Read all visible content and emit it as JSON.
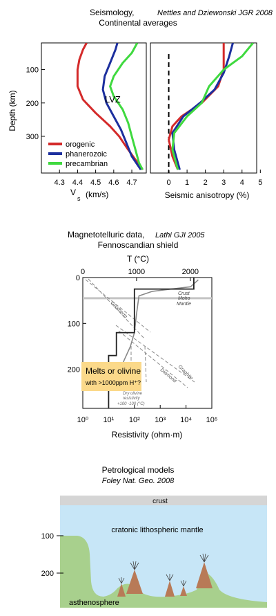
{
  "seismology": {
    "title": "Seismology,",
    "citation": "Nettles and Dziewonski JGR 2008",
    "subtitle": "Continental averages",
    "ylabel": "Depth (km)",
    "lvz_label": "LVZ",
    "legend": [
      "orogenic",
      "phanerozoic",
      "precambrian"
    ]
  },
  "magnetotelluric": {
    "title": "Magnetotelluric data,",
    "citation": "Lathi GJI 2005",
    "subtitle": "Fennoscandian shield",
    "top_axis_label": "T (°C)",
    "xlabel": "Resistivity (ohm·m)",
    "crust": "Crust",
    "moho": "Moho",
    "mantle": "Mantle",
    "geotherm": "Geotherm",
    "graphite": "Graphite",
    "diamond": "Diamond",
    "dry_olivine": [
      "Dry olivine",
      "resistivity",
      "+100 -100 (°C)"
    ],
    "callout_line1": "Melts or olivine",
    "callout_line2": "with >1000ppm H⁺?"
  },
  "petrology": {
    "title": "Petrological models",
    "citation": "Foley Nat. Geo. 2008",
    "crust": "crust",
    "mantle": "cratonic lithospheric mantle",
    "asthenosphere": "asthenosphere",
    "depth_ticks": [
      "100",
      "200"
    ]
  },
  "chart_data": [
    {
      "type": "line",
      "name": "seismic velocity",
      "xlabel": "V_s (km/s)",
      "ylabel": "Depth (km)",
      "xlim": [
        4.2,
        4.78
      ],
      "ylim": [
        410,
        20
      ],
      "xticks": [
        "4.3",
        "4.4",
        "4.5",
        "4.6",
        "4.7"
      ],
      "yticks": [
        "100",
        "200",
        "300"
      ],
      "series": [
        {
          "name": "orogenic",
          "color": "#d42a2a",
          "points": [
            [
              4.45,
              20
            ],
            [
              4.43,
              40
            ],
            [
              4.41,
              70
            ],
            [
              4.4,
              100
            ],
            [
              4.4,
              150
            ],
            [
              4.43,
              190
            ],
            [
              4.5,
              230
            ],
            [
              4.58,
              270
            ],
            [
              4.63,
              300
            ],
            [
              4.68,
              340
            ],
            [
              4.72,
              370
            ],
            [
              4.76,
              400
            ]
          ]
        },
        {
          "name": "phanerozoic",
          "color": "#1c2f9e",
          "points": [
            [
              4.62,
              20
            ],
            [
              4.61,
              40
            ],
            [
              4.58,
              80
            ],
            [
              4.55,
              120
            ],
            [
              4.54,
              160
            ],
            [
              4.56,
              200
            ],
            [
              4.6,
              240
            ],
            [
              4.64,
              280
            ],
            [
              4.67,
              320
            ],
            [
              4.7,
              360
            ],
            [
              4.75,
              400
            ]
          ]
        },
        {
          "name": "precambrian",
          "color": "#3fd93f",
          "points": [
            [
              4.73,
              20
            ],
            [
              4.7,
              50
            ],
            [
              4.65,
              80
            ],
            [
              4.6,
              120
            ],
            [
              4.58,
              150
            ],
            [
              4.6,
              180
            ],
            [
              4.65,
              220
            ],
            [
              4.68,
              260
            ],
            [
              4.7,
              300
            ],
            [
              4.72,
              340
            ],
            [
              4.74,
              380
            ],
            [
              4.76,
              400
            ]
          ]
        }
      ]
    },
    {
      "type": "line",
      "name": "seismic anisotropy",
      "xlabel": "Seismic anisotropy (%)",
      "xlim": [
        -1.0,
        4.8
      ],
      "ylim": [
        410,
        20
      ],
      "xticks": [
        "0",
        "1",
        "2",
        "3",
        "4",
        "5"
      ],
      "reference_line_x": 0,
      "series": [
        {
          "name": "orogenic",
          "color": "#d42a2a",
          "points": [
            [
              3.0,
              20
            ],
            [
              3.0,
              60
            ],
            [
              3.0,
              100
            ],
            [
              2.7,
              150
            ],
            [
              1.8,
              200
            ],
            [
              0.7,
              240
            ],
            [
              0.2,
              270
            ],
            [
              0.0,
              310
            ],
            [
              0.2,
              360
            ],
            [
              0.5,
              400
            ]
          ]
        },
        {
          "name": "phanerozoic",
          "color": "#1c2f9e",
          "points": [
            [
              3.5,
              20
            ],
            [
              3.3,
              60
            ],
            [
              3.0,
              110
            ],
            [
              2.5,
              160
            ],
            [
              1.7,
              200
            ],
            [
              0.8,
              240
            ],
            [
              0.2,
              290
            ],
            [
              0.3,
              340
            ],
            [
              0.6,
              400
            ]
          ]
        },
        {
          "name": "precambrian",
          "color": "#3fd93f",
          "points": [
            [
              4.6,
              20
            ],
            [
              4.0,
              60
            ],
            [
              3.0,
              100
            ],
            [
              2.2,
              150
            ],
            [
              1.8,
              200
            ],
            [
              1.0,
              240
            ],
            [
              0.3,
              290
            ],
            [
              0.2,
              340
            ],
            [
              0.5,
              400
            ]
          ]
        }
      ]
    },
    {
      "type": "line",
      "name": "resistivity profile",
      "xlabel": "Resistivity (ohm·m)",
      "ylabel": "",
      "x_scale": "log",
      "xlim": [
        1,
        100000
      ],
      "ylim": [
        285,
        0
      ],
      "xtick_labels": [
        "10⁰",
        "10¹",
        "10²",
        "10³",
        "10⁴",
        "10⁵"
      ],
      "yticks": [
        "0",
        "100",
        "200"
      ],
      "top_axis": {
        "label": "T (°C)",
        "ticks": [
          "0",
          "1000",
          "2000"
        ],
        "range": [
          0,
          2400
        ]
      },
      "moho_depth": 45,
      "series": [
        {
          "name": "model",
          "color": "#222222",
          "steps": [
            [
              20000,
              0
            ],
            [
              20000,
              25
            ],
            [
              100,
              25
            ],
            [
              100,
              40
            ],
            [
              100,
              120
            ],
            [
              20,
              120
            ],
            [
              20,
              170
            ],
            [
              10,
              170
            ],
            [
              10,
              285
            ]
          ]
        },
        {
          "name": "smooth",
          "color": "#888888",
          "points": [
            [
              30000,
              5
            ],
            [
              15000,
              20
            ],
            [
              500,
              30
            ],
            [
              150,
              40
            ],
            [
              120,
              80
            ],
            [
              100,
              120
            ],
            [
              70,
              150
            ],
            [
              40,
              180
            ],
            [
              25,
              210
            ],
            [
              15,
              240
            ]
          ]
        }
      ]
    }
  ]
}
